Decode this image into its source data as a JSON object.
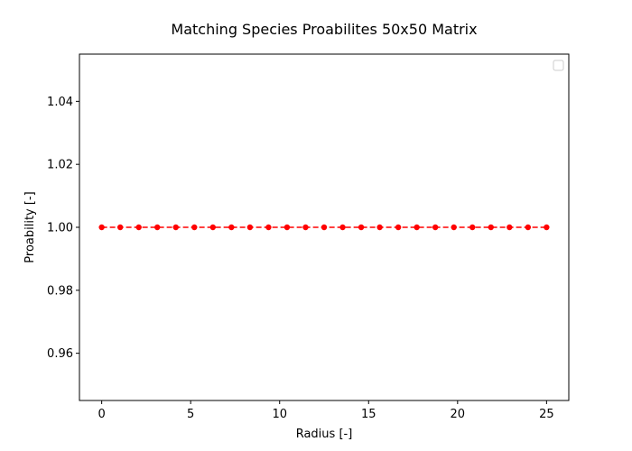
{
  "chart_data": {
    "type": "line",
    "title": "Matching Species Proabilites 50x50 Matrix",
    "xlabel": "Radius [-]",
    "ylabel": "Proability [-]",
    "xlim": [
      -1.25,
      26.25
    ],
    "ylim": [
      0.945,
      1.055
    ],
    "xticks": [
      0,
      5,
      10,
      15,
      20,
      25
    ],
    "xtick_labels": [
      "0",
      "5",
      "10",
      "15",
      "20",
      "25"
    ],
    "yticks": [
      0.96,
      0.98,
      1.0,
      1.02,
      1.04
    ],
    "ytick_labels": [
      "0.96",
      "0.98",
      "1.00",
      "1.02",
      "1.04"
    ],
    "grid": false,
    "legend": {
      "placement": "top-right",
      "entries": []
    },
    "series": [
      {
        "style": "dashed line with circle markers",
        "color": "#ff0000",
        "x": [
          0.0,
          1.0417,
          2.0833,
          3.125,
          4.1667,
          5.2083,
          6.25,
          7.2917,
          8.3333,
          9.375,
          10.4167,
          11.4583,
          12.5,
          13.5417,
          14.5833,
          15.625,
          16.6667,
          17.7083,
          18.75,
          19.7917,
          20.8333,
          21.875,
          22.9167,
          23.9583,
          25.0
        ],
        "y": [
          1,
          1,
          1,
          1,
          1,
          1,
          1,
          1,
          1,
          1,
          1,
          1,
          1,
          1,
          1,
          1,
          1,
          1,
          1,
          1,
          1,
          1,
          1,
          1,
          1
        ]
      }
    ]
  }
}
